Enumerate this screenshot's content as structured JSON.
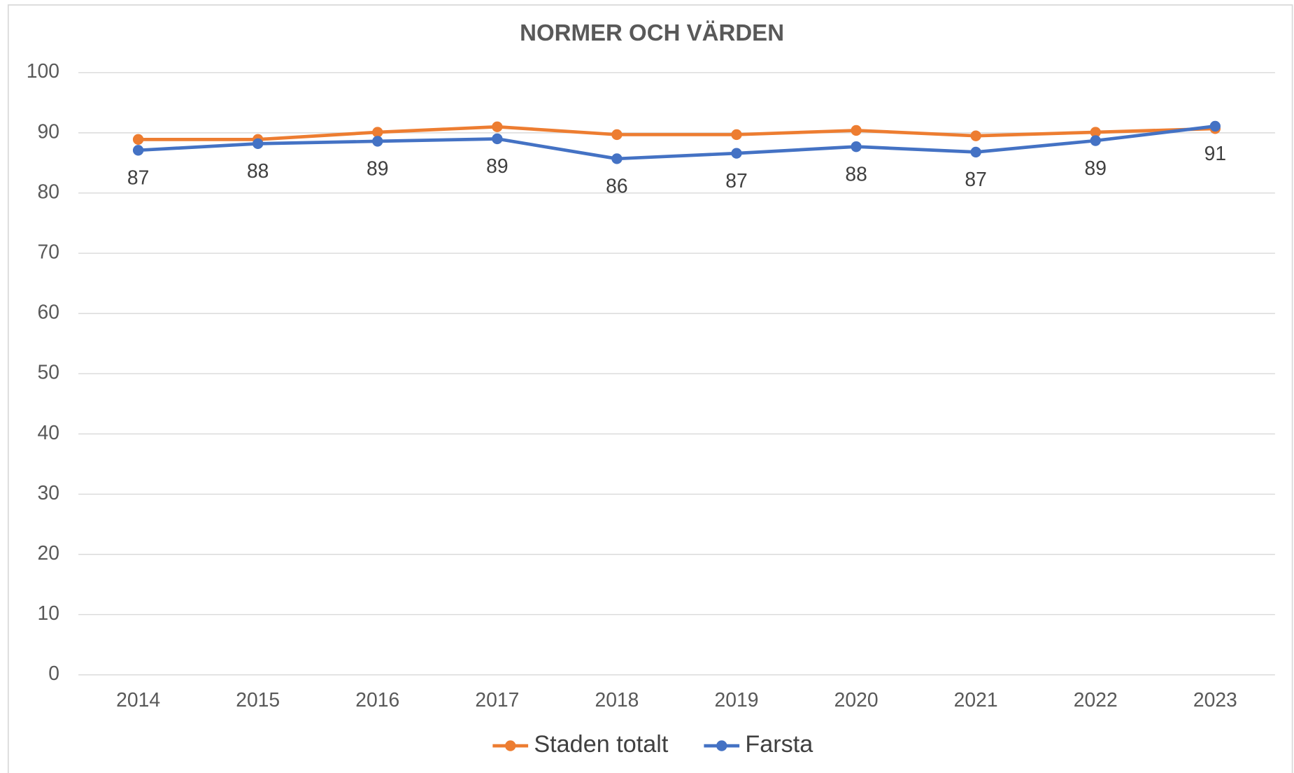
{
  "chart_data": {
    "type": "line",
    "title": "NORMER OCH VÄRDEN",
    "categories": [
      "2014",
      "2015",
      "2016",
      "2017",
      "2018",
      "2019",
      "2020",
      "2021",
      "2022",
      "2023"
    ],
    "series": [
      {
        "name": "Staden totalt",
        "color": "#ed7d31",
        "values": [
          88.9,
          88.9,
          90.1,
          91.0,
          89.7,
          89.7,
          90.4,
          89.5,
          90.1,
          90.7
        ]
      },
      {
        "name": "Farsta",
        "color": "#4472c4",
        "values": [
          87.1,
          88.2,
          88.6,
          89.0,
          85.7,
          86.6,
          87.7,
          86.8,
          88.7,
          91.1
        ],
        "value_labels": [
          "87",
          "88",
          "89",
          "89",
          "86",
          "87",
          "88",
          "87",
          "89",
          "91"
        ]
      }
    ],
    "ylim": [
      0,
      100
    ],
    "yticks": [
      0,
      10,
      20,
      30,
      40,
      50,
      60,
      70,
      80,
      90,
      100
    ],
    "grid": true,
    "legend": "bottom"
  }
}
